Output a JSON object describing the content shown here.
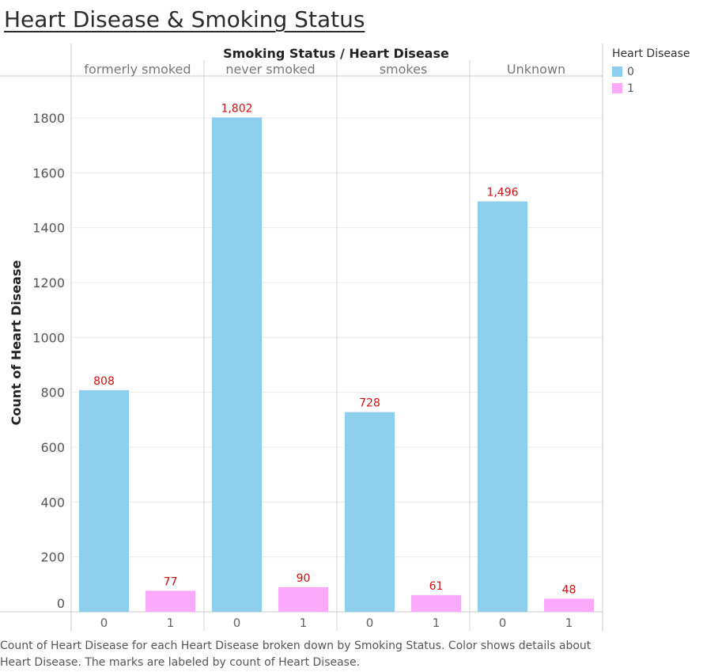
{
  "title": "Heart Disease & Smoking Status",
  "caption": "Count of Heart Disease for each Heart Disease broken down by Smoking Status.  Color shows details about Heart Disease.  The marks are labeled by count of Heart Disease.",
  "colors": {
    "0": "#8ecfed",
    "1": "#fba9fa",
    "label": "#cc1111",
    "grid": "#ececec",
    "axis_line": "#c8c8c8"
  },
  "legend": {
    "title": "Heart Disease",
    "items": [
      {
        "label": "0",
        "color": "#8ecfed"
      },
      {
        "label": "1",
        "color": "#fba9fa"
      }
    ]
  },
  "chart_data": {
    "type": "bar",
    "title": "Heart Disease & Smoking Status",
    "column_header": "Smoking Status  /  Heart Disease",
    "xlabel": "",
    "ylabel": "Count of Heart Disease",
    "ylim": [
      0,
      1900
    ],
    "yticks": [
      0,
      200,
      400,
      600,
      800,
      1000,
      1200,
      1400,
      1600,
      1800
    ],
    "grid": true,
    "legend_position": "right",
    "categories": [
      "formerly smoked",
      "never smoked",
      "smokes",
      "Unknown"
    ],
    "subcategories": [
      "0",
      "1"
    ],
    "series": [
      {
        "name": "0",
        "values": [
          808,
          1802,
          728,
          1496
        ],
        "labels": [
          "808",
          "1,802",
          "728",
          "1,496"
        ]
      },
      {
        "name": "1",
        "values": [
          77,
          90,
          61,
          48
        ],
        "labels": [
          "77",
          "90",
          "61",
          "48"
        ]
      }
    ]
  }
}
